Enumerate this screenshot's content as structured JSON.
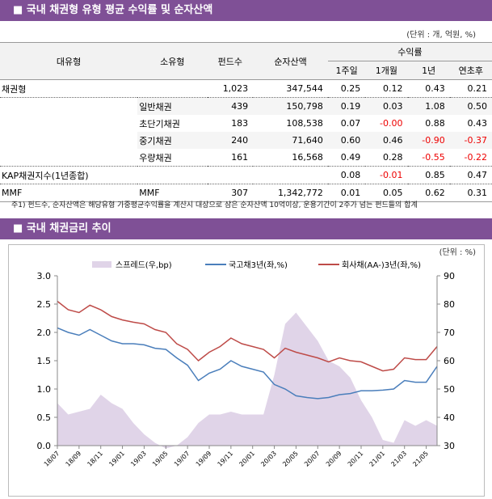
{
  "section1": {
    "title": "■ 국내 채권형 유형 평균 수익률 및 순자산액",
    "unit": "(단위 : 개, 억원, %)"
  },
  "table": {
    "headers": {
      "major": "대유형",
      "minor": "소유형",
      "funds": "펀드수",
      "assets": "순자산액",
      "returns": "수익률",
      "w1": "1주일",
      "m1": "1개월",
      "y1": "1년",
      "ytd": "연초후"
    },
    "rows": [
      {
        "major": "채권형",
        "minor": "",
        "funds": "1,023",
        "assets": "347,544",
        "w1": "0.25",
        "m1": "0.12",
        "y1": "0.43",
        "ytd": "0.21"
      },
      {
        "major": "",
        "minor": "일반채권",
        "funds": "439",
        "assets": "150,798",
        "w1": "0.19",
        "m1": "0.03",
        "y1": "1.08",
        "ytd": "0.50"
      },
      {
        "major": "",
        "minor": "초단기채권",
        "funds": "183",
        "assets": "108,538",
        "w1": "0.07",
        "m1": "-0.00",
        "y1": "0.88",
        "ytd": "0.43"
      },
      {
        "major": "",
        "minor": "중기채권",
        "funds": "240",
        "assets": "71,640",
        "w1": "0.60",
        "m1": "0.46",
        "y1": "-0.90",
        "ytd": "-0.37"
      },
      {
        "major": "",
        "minor": "우량채권",
        "funds": "161",
        "assets": "16,568",
        "w1": "0.49",
        "m1": "0.28",
        "y1": "-0.55",
        "ytd": "-0.22"
      },
      {
        "major": "KAP채권지수(1년종합)",
        "minor": "",
        "funds": "",
        "assets": "",
        "w1": "0.08",
        "m1": "-0.01",
        "y1": "0.85",
        "ytd": "0.47"
      },
      {
        "major": "MMF",
        "minor": "MMF",
        "funds": "307",
        "assets": "1,342,772",
        "w1": "0.01",
        "m1": "0.05",
        "y1": "0.62",
        "ytd": "0.31"
      }
    ],
    "note": "주1) 펀드수, 순자산액은 해당유형 가중평균수익률을 계산시 대상으로 삼은 순자산액 10억이상, 운용기간이 2주가 넘는 펀드들의 합계",
    "negative_color": "#ee0000"
  },
  "section2": {
    "title": "■ 국내 채권금리 추이",
    "unit": "(단위 : %)"
  },
  "chart_data": {
    "type": "line",
    "x": [
      "18/07",
      "18/08",
      "18/09",
      "18/10",
      "18/11",
      "18/12",
      "19/01",
      "19/02",
      "19/03",
      "19/04",
      "19/05",
      "19/06",
      "19/07",
      "19/08",
      "19/09",
      "19/10",
      "19/11",
      "19/12",
      "20/01",
      "20/02",
      "20/03",
      "20/04",
      "20/05",
      "20/06",
      "20/07",
      "20/08",
      "20/09",
      "20/10",
      "20/11",
      "20/12",
      "21/01",
      "21/02",
      "21/03",
      "21/04",
      "21/05",
      "21/06"
    ],
    "x_tick_labels": [
      "18/07",
      "18/09",
      "18/11",
      "19/01",
      "19/03",
      "19/05",
      "19/07",
      "19/09",
      "19/11",
      "20/01",
      "20/03",
      "20/05",
      "20/07",
      "20/09",
      "20/11",
      "21/01",
      "21/03",
      "21/05"
    ],
    "left_axis": {
      "ylim": [
        0,
        3.0
      ],
      "ticks": [
        "0.0",
        "0.5",
        "1.0",
        "1.5",
        "2.0",
        "2.5",
        "3.0"
      ]
    },
    "right_axis": {
      "ylim": [
        30,
        90
      ],
      "ticks": [
        "30",
        "40",
        "50",
        "60",
        "70",
        "80",
        "90"
      ]
    },
    "legend_position": "top",
    "series": [
      {
        "name": "스프레드(우,bp)",
        "type": "area",
        "axis": "right",
        "color": "#e0d4e8",
        "values": [
          45,
          41,
          42,
          43,
          48,
          45,
          43,
          38,
          34,
          31,
          29,
          30,
          33,
          38,
          41,
          41,
          42,
          41,
          41,
          41,
          55,
          73,
          77,
          72,
          67,
          60,
          58,
          54,
          46,
          40,
          32,
          31,
          39,
          37,
          39,
          37
        ]
      },
      {
        "name": "국고채3년(좌,%)",
        "type": "line",
        "axis": "left",
        "color": "#4a7ebb",
        "values": [
          2.08,
          2.0,
          1.95,
          2.05,
          1.95,
          1.85,
          1.8,
          1.8,
          1.78,
          1.72,
          1.7,
          1.55,
          1.42,
          1.15,
          1.28,
          1.35,
          1.5,
          1.4,
          1.35,
          1.3,
          1.08,
          1.0,
          0.88,
          0.85,
          0.83,
          0.85,
          0.9,
          0.92,
          0.97,
          0.97,
          0.98,
          1.0,
          1.15,
          1.12,
          1.12,
          1.4
        ]
      },
      {
        "name": "회사채(AA-)3년(좌,%)",
        "type": "line",
        "axis": "left",
        "color": "#be4b48",
        "values": [
          2.55,
          2.4,
          2.35,
          2.48,
          2.4,
          2.28,
          2.22,
          2.18,
          2.15,
          2.05,
          2.0,
          1.8,
          1.7,
          1.5,
          1.65,
          1.75,
          1.9,
          1.8,
          1.75,
          1.7,
          1.55,
          1.72,
          1.65,
          1.6,
          1.55,
          1.48,
          1.55,
          1.5,
          1.48,
          1.4,
          1.32,
          1.35,
          1.55,
          1.52,
          1.52,
          1.75
        ]
      }
    ]
  }
}
